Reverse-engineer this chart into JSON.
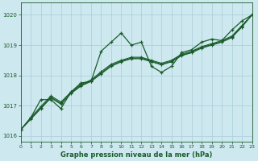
{
  "title": "Graphe pression niveau de la mer (hPa)",
  "bg_color": "#cde8ef",
  "grid_color": "#aaccd8",
  "line_color": "#1a5c2a",
  "xlim": [
    0,
    23
  ],
  "ylim": [
    1015.8,
    1020.4
  ],
  "yticks": [
    1016,
    1017,
    1018,
    1019,
    1020
  ],
  "xticks": [
    0,
    1,
    2,
    3,
    4,
    5,
    6,
    7,
    8,
    9,
    10,
    11,
    12,
    13,
    14,
    15,
    16,
    17,
    18,
    19,
    20,
    21,
    22,
    23
  ],
  "series_wiggly": {
    "x": [
      0,
      1,
      2,
      3,
      4,
      5,
      6,
      7,
      8,
      9,
      10,
      11,
      12,
      13,
      14,
      15,
      16,
      17,
      18,
      19,
      20,
      21,
      22,
      23
    ],
    "y": [
      1016.2,
      1016.6,
      1017.2,
      1017.2,
      1016.9,
      1017.45,
      1017.75,
      1017.8,
      1018.8,
      1019.1,
      1019.4,
      1019.0,
      1019.1,
      1018.3,
      1018.1,
      1018.3,
      1018.75,
      1018.85,
      1019.1,
      1019.2,
      1019.15,
      1019.5,
      1019.8,
      1020.0
    ]
  },
  "series_linear1": {
    "x": [
      0,
      1,
      2,
      3,
      4,
      5,
      6,
      7,
      8,
      9,
      10,
      11,
      12,
      13,
      14,
      15,
      16,
      17,
      18,
      19,
      20,
      21,
      22,
      23
    ],
    "y": [
      1016.2,
      1016.55,
      1016.9,
      1017.25,
      1017.05,
      1017.4,
      1017.65,
      1017.8,
      1018.05,
      1018.3,
      1018.45,
      1018.55,
      1018.55,
      1018.45,
      1018.35,
      1018.45,
      1018.65,
      1018.75,
      1018.9,
      1019.0,
      1019.1,
      1019.25,
      1019.6,
      1020.0
    ]
  },
  "series_linear2": {
    "x": [
      0,
      1,
      2,
      3,
      4,
      5,
      6,
      7,
      8,
      9,
      10,
      11,
      12,
      13,
      14,
      15,
      16,
      17,
      18,
      19,
      20,
      21,
      22,
      23
    ],
    "y": [
      1016.2,
      1016.57,
      1016.93,
      1017.28,
      1017.08,
      1017.42,
      1017.67,
      1017.82,
      1018.08,
      1018.33,
      1018.47,
      1018.57,
      1018.57,
      1018.47,
      1018.37,
      1018.47,
      1018.67,
      1018.77,
      1018.93,
      1019.02,
      1019.12,
      1019.27,
      1019.62,
      1020.0
    ]
  },
  "series_linear3": {
    "x": [
      0,
      1,
      2,
      3,
      4,
      5,
      6,
      7,
      8,
      9,
      10,
      11,
      12,
      13,
      14,
      15,
      16,
      17,
      18,
      19,
      20,
      21,
      22,
      23
    ],
    "y": [
      1016.2,
      1016.6,
      1016.97,
      1017.32,
      1017.12,
      1017.45,
      1017.7,
      1017.85,
      1018.12,
      1018.37,
      1018.5,
      1018.6,
      1018.6,
      1018.5,
      1018.4,
      1018.5,
      1018.7,
      1018.8,
      1018.95,
      1019.05,
      1019.15,
      1019.3,
      1019.65,
      1020.0
    ]
  }
}
